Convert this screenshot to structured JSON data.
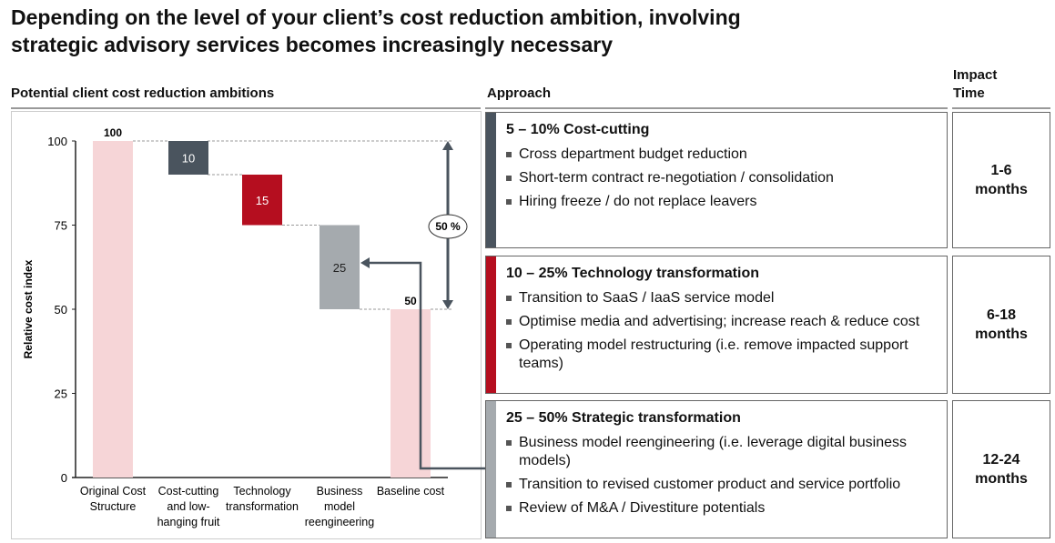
{
  "title_line1": "Depending on the level of your client’s cost reduction ambition, involving",
  "title_line2": "strategic advisory services becomes increasingly necessary",
  "left_heading": "Potential client cost reduction ambitions",
  "approach_heading": "Approach",
  "impact_heading_1": "Impact",
  "impact_heading_2": "Time",
  "chart_data": {
    "type": "waterfall",
    "ylabel": "Relative cost index",
    "ylim": [
      0,
      100
    ],
    "yticks": [
      "0",
      "25",
      "50",
      "75",
      "100"
    ],
    "categories": [
      [
        "Original Cost",
        "Structure"
      ],
      [
        "Cost-cutting",
        "and low-",
        "hanging fruit"
      ],
      [
        "Technology",
        "transformation"
      ],
      [
        "Business",
        "model",
        "reengineering"
      ],
      [
        "Baseline cost"
      ]
    ],
    "bars": [
      {
        "kind": "total",
        "start": 0,
        "end": 100,
        "label": "100",
        "color": "#f6d5d7"
      },
      {
        "kind": "delta",
        "start": 90,
        "end": 100,
        "label": "10",
        "color": "#4a545e"
      },
      {
        "kind": "delta",
        "start": 75,
        "end": 90,
        "label": "15",
        "color": "#b50e1f"
      },
      {
        "kind": "delta",
        "start": 50,
        "end": 75,
        "label": "25",
        "color": "#a5aaae"
      },
      {
        "kind": "total",
        "start": 0,
        "end": 50,
        "label": "50",
        "color": "#f6d5d7"
      }
    ],
    "annotation": "50 %"
  },
  "rows": [
    {
      "title": "5 – 10% Cost-cutting",
      "color": "#4a545e",
      "items": [
        "Cross department budget reduction",
        "Short-term contract re-negotiation  / consolidation",
        "Hiring freeze / do not replace leavers"
      ],
      "impact_1": "1-6",
      "impact_2": "months"
    },
    {
      "title": "10 – 25% Technology transformation",
      "color": "#b50e1f",
      "items": [
        "Transition to SaaS / IaaS service model",
        "Optimise media and advertising; increase reach & reduce cost",
        "Operating model restructuring (i.e. remove impacted support teams)"
      ],
      "impact_1": "6-18",
      "impact_2": "months"
    },
    {
      "title": "25 – 50% Strategic transformation",
      "color": "#a5aaae",
      "items": [
        "Business model reengineering (i.e. leverage digital business models)",
        "Transition to revised customer product and service portfolio",
        "Review of M&A / Divestiture potentials"
      ],
      "impact_1": "12-24",
      "impact_2": "months"
    }
  ]
}
